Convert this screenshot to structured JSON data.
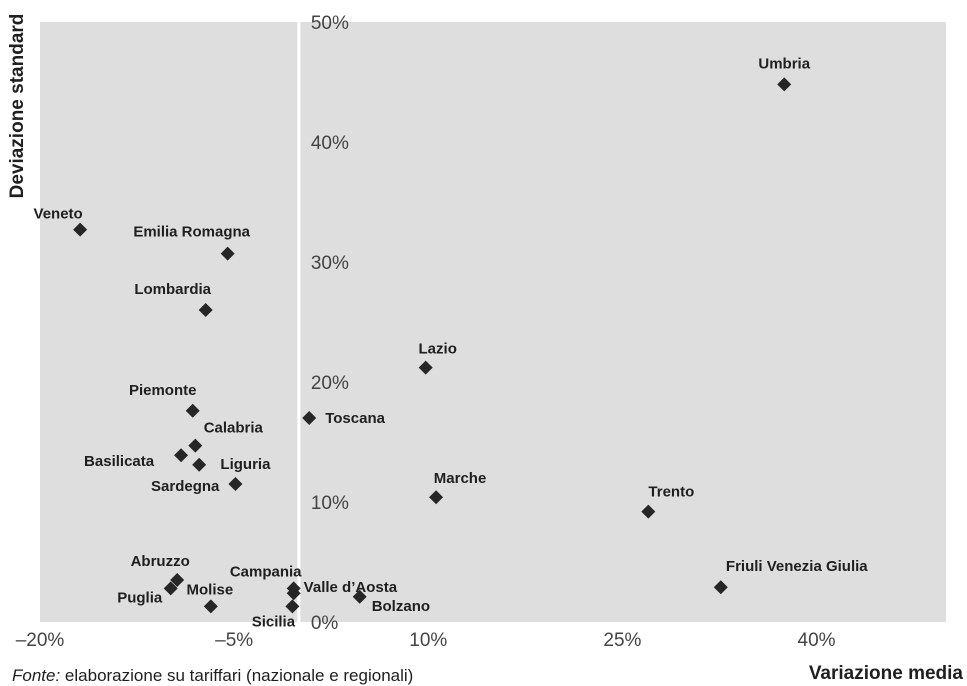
{
  "chart_data": {
    "type": "scatter",
    "xlabel": "Variazione media",
    "ylabel": "Deviazione standard",
    "xlim": [
      -20,
      50
    ],
    "ylim": [
      0,
      50
    ],
    "x_ticks": [
      "–20%",
      "–5%",
      "10%",
      "25%",
      "40%"
    ],
    "y_ticks": [
      "0%",
      "10%",
      "20%",
      "30%",
      "40%",
      "50%"
    ],
    "grid": false,
    "marker": "diamond",
    "colors": {
      "plot_bg": "#dedede",
      "marker": "#262626",
      "zero_line": "#ffffff"
    },
    "points": [
      {
        "label": "Umbria",
        "x": 37.5,
        "y": 44.8
      },
      {
        "label": "Veneto",
        "x": -16.9,
        "y": 32.7
      },
      {
        "label": "Emilia Romagna",
        "x": -5.5,
        "y": 30.7
      },
      {
        "label": "Lombardia",
        "x": -7.2,
        "y": 26.0
      },
      {
        "label": "Lazio",
        "x": 9.8,
        "y": 21.2
      },
      {
        "label": "Piemonte",
        "x": -8.2,
        "y": 17.6
      },
      {
        "label": "Toscana",
        "x": 0.8,
        "y": 17.0
      },
      {
        "label": "Calabria",
        "x": -8.0,
        "y": 14.7
      },
      {
        "label": "Basilicata",
        "x": -9.1,
        "y": 13.9
      },
      {
        "label": "Sardegna",
        "x": -7.7,
        "y": 13.1
      },
      {
        "label": "Liguria",
        "x": -4.9,
        "y": 11.5
      },
      {
        "label": "Marche",
        "x": 10.6,
        "y": 10.4
      },
      {
        "label": "Trento",
        "x": 27.0,
        "y": 9.2
      },
      {
        "label": "Abruzzo",
        "x": -9.4,
        "y": 3.5
      },
      {
        "label": "Puglia",
        "x": -9.9,
        "y": 2.8
      },
      {
        "label": "Campania",
        "x": -0.4,
        "y": 2.8
      },
      {
        "label": "Valle d’Aosta",
        "x": -0.4,
        "y": 2.4
      },
      {
        "label": "Friuli Venezia Giulia",
        "x": 32.6,
        "y": 2.9
      },
      {
        "label": "Bolzano",
        "x": 4.7,
        "y": 2.1
      },
      {
        "label": "Molise",
        "x": -6.8,
        "y": 1.3
      },
      {
        "label": "Sicilia",
        "x": -0.5,
        "y": 1.3
      }
    ]
  },
  "source": {
    "prefix": "Fonte:",
    "text": " elaborazione su tariffari (nazionale e regionali)"
  }
}
